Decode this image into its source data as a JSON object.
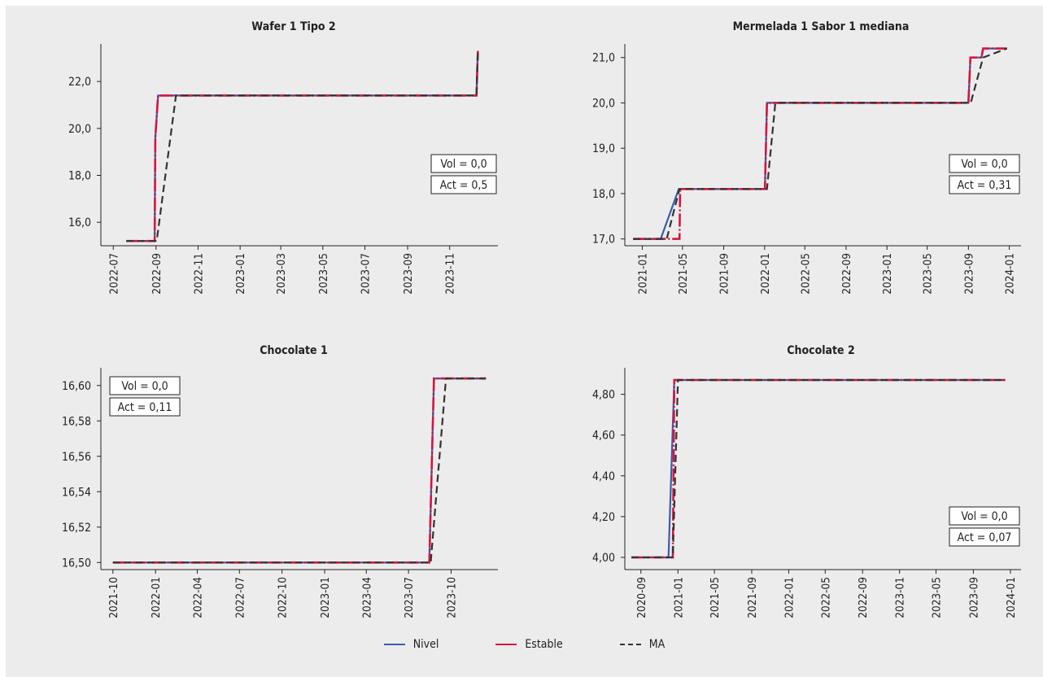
{
  "colors": {
    "nivel": "#3b5ca8",
    "estable": "#d4163f",
    "ma": "#333333",
    "axis": "#222222",
    "text": "#222222"
  },
  "legend": [
    {
      "key": "nivel",
      "label": "Nivel"
    },
    {
      "key": "estable",
      "label": "Estable"
    },
    {
      "key": "ma",
      "label": "MA"
    }
  ],
  "chart_data": [
    {
      "type": "line",
      "title": "Wafer 1 Tipo 2",
      "xlabel": "",
      "ylabel": "",
      "xlim": [
        "2022-06-13",
        "2024-01-10"
      ],
      "ylim": [
        15.0,
        23.6
      ],
      "x_ticks": [
        "2022-07",
        "2022-09",
        "2022-11",
        "2023-01",
        "2023-03",
        "2023-05",
        "2023-07",
        "2023-09",
        "2023-11"
      ],
      "y_ticks": [
        16.0,
        18.0,
        20.0,
        22.0
      ],
      "y_decimals": 1,
      "annotations": [
        "Vol = 0,0",
        "Act = 0,5"
      ],
      "annotation_position": "right-middle",
      "series": [
        {
          "name": "Nivel",
          "key": "nivel",
          "x": [
            "2022-07-20",
            "2022-08-30",
            "2022-08-31",
            "2022-09-04",
            "2023-12-10",
            "2023-12-11",
            "2023-12-12"
          ],
          "y": [
            15.2,
            15.2,
            19.6,
            21.4,
            21.4,
            22.5,
            23.3
          ]
        },
        {
          "name": "Estable",
          "key": "estable",
          "x": [
            "2022-07-20",
            "2022-08-30",
            "2022-08-31",
            "2022-09-04",
            "2023-12-10",
            "2023-12-11",
            "2023-12-12"
          ],
          "y": [
            15.2,
            15.2,
            19.6,
            21.4,
            21.4,
            22.5,
            23.3
          ]
        },
        {
          "name": "MA",
          "key": "ma",
          "x": [
            "2022-07-20",
            "2022-09-02",
            "2022-09-30",
            "2023-12-10",
            "2023-12-11",
            "2023-12-12"
          ],
          "y": [
            15.2,
            15.2,
            21.4,
            21.4,
            22.5,
            23.3
          ]
        }
      ]
    },
    {
      "type": "line",
      "title": "Mermelada 1 Sabor 1 mediana",
      "xlabel": "",
      "ylabel": "",
      "xlim": [
        "2020-11-10",
        "2024-02-05"
      ],
      "ylim": [
        16.85,
        21.3
      ],
      "x_ticks": [
        "2021-01",
        "2021-05",
        "2021-09",
        "2022-01",
        "2022-05",
        "2022-09",
        "2023-01",
        "2023-05",
        "2023-09",
        "2024-01"
      ],
      "y_ticks": [
        17.0,
        18.0,
        19.0,
        20.0,
        21.0
      ],
      "y_decimals": 1,
      "annotations": [
        "Vol = 0,0",
        "Act = 0,31"
      ],
      "annotation_position": "right-middle",
      "series": [
        {
          "name": "Nivel",
          "key": "nivel",
          "x": [
            "2020-12-05",
            "2021-02-25",
            "2021-04-20",
            "2022-01-02",
            "2022-01-08",
            "2023-09-01",
            "2023-09-07",
            "2023-10-10",
            "2023-10-15",
            "2023-12-25"
          ],
          "y": [
            17.0,
            17.0,
            18.1,
            18.1,
            20.0,
            20.0,
            21.0,
            21.0,
            21.2,
            21.2
          ]
        },
        {
          "name": "Estable",
          "key": "estable",
          "x": [
            "2020-12-05",
            "2021-04-22",
            "2021-04-24",
            "2022-01-02",
            "2022-01-08",
            "2023-09-01",
            "2023-09-07",
            "2023-10-10",
            "2023-10-15",
            "2023-12-25"
          ],
          "y": [
            17.0,
            17.0,
            18.1,
            18.1,
            20.0,
            20.0,
            21.0,
            21.0,
            21.2,
            21.2
          ]
        },
        {
          "name": "MA",
          "key": "ma",
          "x": [
            "2020-12-05",
            "2021-03-15",
            "2021-04-22",
            "2022-01-08",
            "2022-02-02",
            "2023-09-08",
            "2023-10-15",
            "2023-12-25"
          ],
          "y": [
            17.0,
            17.0,
            18.1,
            18.1,
            20.0,
            20.0,
            21.0,
            21.2
          ]
        }
      ]
    },
    {
      "type": "line",
      "title": "Chocolate 1",
      "xlabel": "",
      "ylabel": "",
      "xlim": [
        "2021-09-05",
        "2024-01-10"
      ],
      "ylim": [
        16.496,
        16.61
      ],
      "x_ticks": [
        "2021-10",
        "2022-01",
        "2022-04",
        "2022-07",
        "2022-10",
        "2023-01",
        "2023-04",
        "2023-07",
        "2023-10"
      ],
      "y_ticks": [
        16.5,
        16.52,
        16.54,
        16.56,
        16.58,
        16.6
      ],
      "y_decimals": 2,
      "annotations": [
        "Vol = 0,0",
        "Act = 0,11"
      ],
      "annotation_position": "left-top",
      "series": [
        {
          "name": "Nivel",
          "key": "nivel",
          "x": [
            "2021-10-01",
            "2023-08-15",
            "2023-08-25",
            "2023-12-15"
          ],
          "y": [
            16.5,
            16.5,
            16.604,
            16.604
          ]
        },
        {
          "name": "Estable",
          "key": "estable",
          "x": [
            "2021-10-01",
            "2023-08-15",
            "2023-08-25",
            "2023-12-15"
          ],
          "y": [
            16.5,
            16.5,
            16.604,
            16.604
          ]
        },
        {
          "name": "MA",
          "key": "ma",
          "x": [
            "2021-10-01",
            "2023-08-18",
            "2023-09-20",
            "2023-12-15"
          ],
          "y": [
            16.5,
            16.5,
            16.604,
            16.604
          ]
        }
      ]
    },
    {
      "type": "line",
      "title": "Chocolate 2",
      "xlabel": "",
      "ylabel": "",
      "xlim": [
        "2020-07-10",
        "2024-02-05"
      ],
      "ylim": [
        3.94,
        4.93
      ],
      "x_ticks": [
        "2020-09",
        "2021-01",
        "2021-05",
        "2021-09",
        "2022-01",
        "2022-05",
        "2022-09",
        "2023-01",
        "2023-05",
        "2023-09",
        "2024-01"
      ],
      "y_ticks": [
        4.0,
        4.2,
        4.4,
        4.6,
        4.8
      ],
      "y_decimals": 2,
      "annotations": [
        "Vol = 0,0",
        "Act = 0,07"
      ],
      "annotation_position": "right-middle",
      "series": [
        {
          "name": "Nivel",
          "key": "nivel",
          "x": [
            "2020-08-01",
            "2020-12-01",
            "2020-12-20",
            "2023-12-15"
          ],
          "y": [
            4.0,
            4.0,
            4.87,
            4.87
          ]
        },
        {
          "name": "Estable",
          "key": "estable",
          "x": [
            "2020-08-01",
            "2020-12-15",
            "2020-12-20",
            "2023-12-15"
          ],
          "y": [
            4.0,
            4.0,
            4.87,
            4.87
          ]
        },
        {
          "name": "MA",
          "key": "ma",
          "x": [
            "2020-08-01",
            "2020-12-15",
            "2021-01-01",
            "2023-12-15"
          ],
          "y": [
            4.0,
            4.0,
            4.87,
            4.87
          ]
        }
      ]
    }
  ]
}
